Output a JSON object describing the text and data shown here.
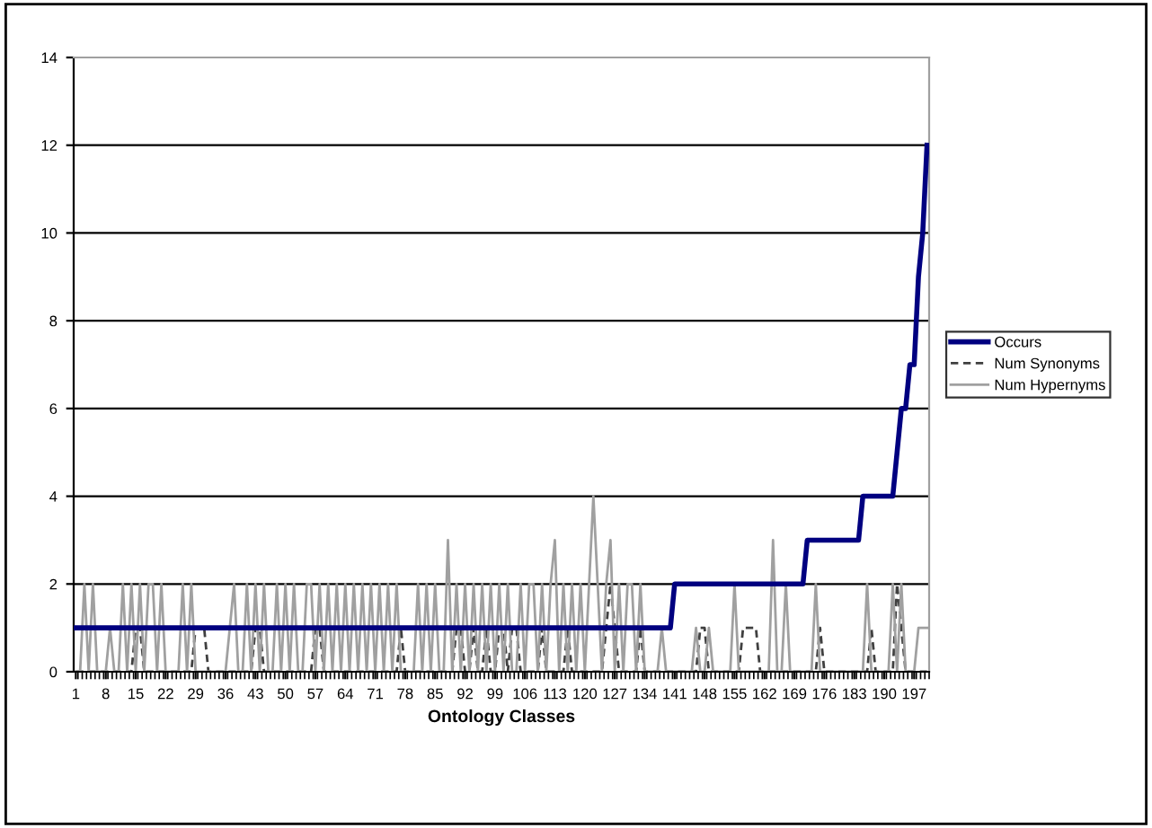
{
  "chart_data": {
    "type": "line",
    "xlabel": "Ontology Classes",
    "categories": [
      "1",
      null,
      null,
      null,
      null,
      null,
      null,
      "8",
      null,
      null,
      null,
      null,
      null,
      null,
      "15",
      null,
      null,
      null,
      null,
      null,
      null,
      "22",
      null,
      null,
      null,
      null,
      null,
      null,
      "29",
      null,
      null,
      null,
      null,
      null,
      null,
      "36",
      null,
      null,
      null,
      null,
      null,
      null,
      "43",
      null,
      null,
      null,
      null,
      null,
      null,
      "50",
      null,
      null,
      null,
      null,
      null,
      null,
      "57",
      null,
      null,
      null,
      null,
      null,
      null,
      "64",
      null,
      null,
      null,
      null,
      null,
      null,
      "71",
      null,
      null,
      null,
      null,
      null,
      null,
      "78",
      null,
      null,
      null,
      null,
      null,
      null,
      "85",
      null,
      null,
      null,
      null,
      null,
      null,
      "92",
      null,
      null,
      null,
      null,
      null,
      null,
      "99",
      null,
      null,
      null,
      null,
      null,
      null,
      "106",
      null,
      null,
      null,
      null,
      null,
      null,
      "113",
      null,
      null,
      null,
      null,
      null,
      null,
      "120",
      null,
      null,
      null,
      null,
      null,
      null,
      "127",
      null,
      null,
      null,
      null,
      null,
      null,
      "134",
      null,
      null,
      null,
      null,
      null,
      null,
      "141",
      null,
      null,
      null,
      null,
      null,
      null,
      "148",
      null,
      null,
      null,
      null,
      null,
      null,
      "155",
      null,
      null,
      null,
      null,
      null,
      null,
      "162",
      null,
      null,
      null,
      null,
      null,
      null,
      "169",
      null,
      null,
      null,
      null,
      null,
      null,
      "176",
      null,
      null,
      null,
      null,
      null,
      null,
      "183",
      null,
      null,
      null,
      null,
      null,
      null,
      "190",
      null,
      null,
      null,
      null,
      null,
      null,
      "197",
      null,
      null,
      null
    ],
    "series": [
      {
        "name": "Occurs",
        "color": "#000080",
        "line_style": "solid",
        "values": [
          1,
          1,
          1,
          1,
          1,
          1,
          1,
          1,
          1,
          1,
          1,
          1,
          1,
          1,
          1,
          1,
          1,
          1,
          1,
          1,
          1,
          1,
          1,
          1,
          1,
          1,
          1,
          1,
          1,
          1,
          1,
          1,
          1,
          1,
          1,
          1,
          1,
          1,
          1,
          1,
          1,
          1,
          1,
          1,
          1,
          1,
          1,
          1,
          1,
          1,
          1,
          1,
          1,
          1,
          1,
          1,
          1,
          1,
          1,
          1,
          1,
          1,
          1,
          1,
          1,
          1,
          1,
          1,
          1,
          1,
          1,
          1,
          1,
          1,
          1,
          1,
          1,
          1,
          1,
          1,
          1,
          1,
          1,
          1,
          1,
          1,
          1,
          1,
          1,
          1,
          1,
          1,
          1,
          1,
          1,
          1,
          1,
          1,
          1,
          1,
          1,
          1,
          1,
          1,
          1,
          1,
          1,
          1,
          1,
          1,
          1,
          1,
          1,
          1,
          1,
          1,
          1,
          1,
          1,
          1,
          1,
          1,
          1,
          1,
          1,
          1,
          1,
          1,
          1,
          1,
          1,
          1,
          1,
          1,
          1,
          1,
          1,
          1,
          1,
          1,
          2,
          2,
          2,
          2,
          2,
          2,
          2,
          2,
          2,
          2,
          2,
          2,
          2,
          2,
          2,
          2,
          2,
          2,
          2,
          2,
          2,
          2,
          2,
          2,
          2,
          2,
          2,
          2,
          2,
          2,
          2,
          3,
          3,
          3,
          3,
          3,
          3,
          3,
          3,
          3,
          3,
          3,
          3,
          3,
          4,
          4,
          4,
          4,
          4,
          4,
          4,
          4,
          5,
          6,
          6,
          7,
          7,
          9,
          10,
          12
        ]
      },
      {
        "name": "Num Synonyms",
        "color": "#404040",
        "line_style": "dashed",
        "values": [
          0,
          0,
          0,
          0,
          0,
          0,
          0,
          0,
          0,
          0,
          0,
          0,
          0,
          0,
          1,
          1,
          0,
          0,
          0,
          0,
          0,
          0,
          0,
          0,
          0,
          0,
          0,
          0,
          1,
          1,
          1,
          0,
          0,
          0,
          0,
          0,
          0,
          0,
          0,
          0,
          0,
          0,
          1,
          1,
          0,
          0,
          0,
          0,
          0,
          0,
          0,
          0,
          0,
          0,
          0,
          0,
          1,
          1,
          0,
          0,
          0,
          0,
          0,
          0,
          0,
          0,
          0,
          0,
          0,
          0,
          0,
          0,
          0,
          0,
          0,
          0,
          1,
          0,
          0,
          0,
          0,
          0,
          0,
          0,
          0,
          0,
          0,
          0,
          0,
          1,
          1,
          0,
          0,
          1,
          0,
          0,
          1,
          0,
          0,
          1,
          1,
          0,
          1,
          1,
          0,
          0,
          0,
          0,
          0,
          1,
          0,
          0,
          0,
          0,
          0,
          1,
          0,
          0,
          0,
          0,
          0,
          0,
          0,
          0,
          1,
          2,
          1,
          0,
          0,
          0,
          0,
          0,
          1,
          0,
          0,
          0,
          0,
          0,
          0,
          0,
          0,
          0,
          0,
          0,
          0,
          0,
          1,
          1,
          0,
          0,
          0,
          0,
          0,
          0,
          0,
          0,
          1,
          1,
          1,
          1,
          0,
          0,
          0,
          0,
          0,
          0,
          0,
          0,
          0,
          0,
          0,
          0,
          0,
          0,
          1,
          0,
          0,
          0,
          0,
          0,
          0,
          0,
          0,
          0,
          0,
          0,
          1,
          0,
          0,
          0,
          0,
          0,
          2,
          1,
          0,
          0,
          0,
          0,
          0,
          0
        ]
      },
      {
        "name": "Num Hypernyms",
        "color": "#a0a0a0",
        "line_style": "solid",
        "values": [
          0,
          0,
          2,
          0,
          2,
          0,
          0,
          0,
          1,
          0,
          0,
          2,
          0,
          2,
          0,
          2,
          0,
          2,
          2,
          0,
          2,
          0,
          0,
          0,
          0,
          2,
          0,
          2,
          0,
          0,
          0,
          0,
          0,
          0,
          0,
          0,
          1,
          2,
          0,
          0,
          2,
          0,
          2,
          0,
          2,
          0,
          0,
          2,
          0,
          2,
          0,
          2,
          0,
          0,
          2,
          2,
          0,
          2,
          0,
          2,
          0,
          2,
          0,
          2,
          0,
          2,
          0,
          2,
          0,
          2,
          0,
          2,
          0,
          2,
          0,
          2,
          0,
          0,
          0,
          0,
          2,
          0,
          2,
          0,
          2,
          0,
          0,
          3,
          0,
          2,
          0,
          2,
          0,
          2,
          0,
          2,
          0,
          2,
          0,
          2,
          0,
          2,
          0,
          0,
          2,
          0,
          2,
          2,
          0,
          2,
          0,
          2,
          3,
          0,
          2,
          0,
          2,
          0,
          2,
          0,
          2,
          4,
          2,
          0,
          2,
          3,
          0,
          2,
          0,
          2,
          2,
          0,
          2,
          0,
          0,
          0,
          0,
          1,
          0,
          0,
          0,
          0,
          0,
          0,
          0,
          1,
          0,
          0,
          1,
          0,
          0,
          0,
          0,
          0,
          2,
          0,
          0,
          0,
          0,
          0,
          0,
          0,
          0,
          3,
          0,
          0,
          2,
          0,
          0,
          0,
          0,
          0,
          0,
          2,
          0,
          0,
          0,
          0,
          0,
          0,
          0,
          0,
          0,
          0,
          0,
          2,
          0,
          0,
          0,
          0,
          0,
          2,
          0,
          2,
          0,
          0,
          0,
          1,
          1,
          1
        ]
      }
    ],
    "ylim": [
      0,
      14
    ],
    "yticks": [
      0,
      2,
      4,
      6,
      8,
      10,
      12,
      14
    ],
    "grid": "y",
    "legend": "right",
    "marker": "none"
  }
}
